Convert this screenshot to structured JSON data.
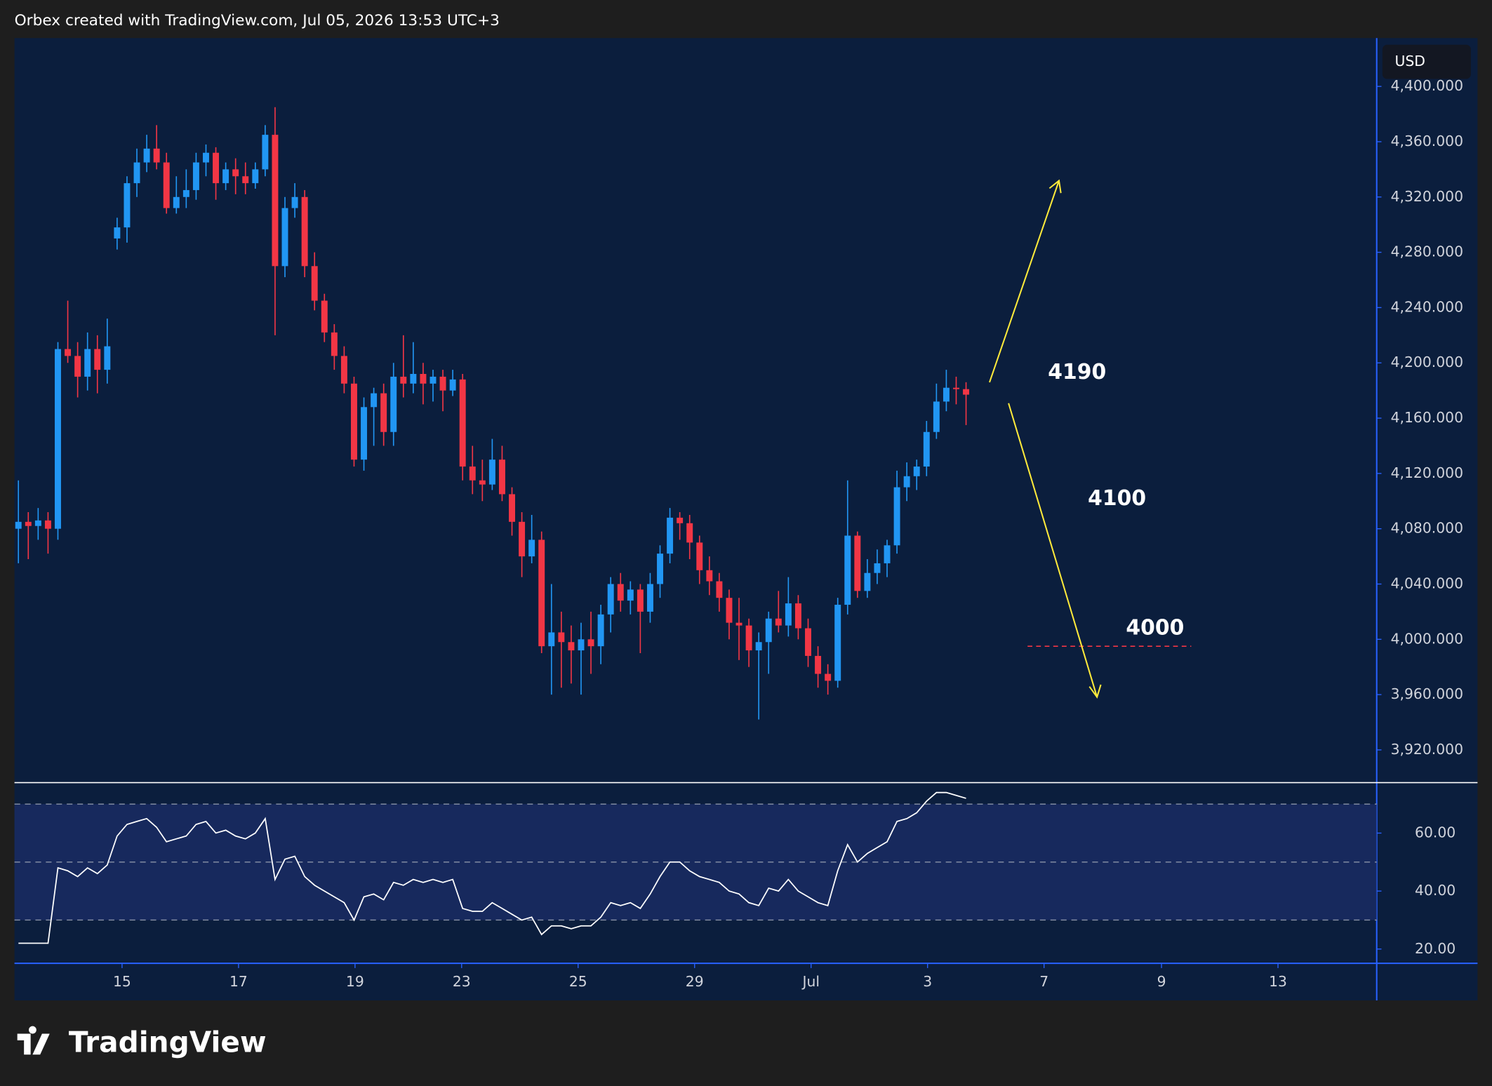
{
  "header": "Orbex created with TradingView.com, Jul 05, 2026 13:53 UTC+3",
  "logo": "TradingView",
  "chart_data": {
    "type": "candlestick",
    "currency": "USD",
    "up_color": "#2196f3",
    "down_color": "#f23645",
    "candles": [
      [
        4080,
        4115,
        4055,
        4085
      ],
      [
        4085,
        4092,
        4058,
        4082
      ],
      [
        4082,
        4095,
        4072,
        4086
      ],
      [
        4086,
        4092,
        4062,
        4080
      ],
      [
        4080,
        4215,
        4072,
        4210
      ],
      [
        4210,
        4245,
        4200,
        4205
      ],
      [
        4205,
        4215,
        4175,
        4190
      ],
      [
        4190,
        4222,
        4180,
        4210
      ],
      [
        4210,
        4220,
        4178,
        4195
      ],
      [
        4195,
        4232,
        4185,
        4212
      ],
      [
        4290,
        4305,
        4282,
        4298
      ],
      [
        4298,
        4335,
        4287,
        4330
      ],
      [
        4330,
        4355,
        4320,
        4345
      ],
      [
        4345,
        4365,
        4338,
        4355
      ],
      [
        4355,
        4372,
        4340,
        4345
      ],
      [
        4345,
        4352,
        4308,
        4312
      ],
      [
        4312,
        4335,
        4308,
        4320
      ],
      [
        4320,
        4340,
        4312,
        4325
      ],
      [
        4325,
        4352,
        4318,
        4345
      ],
      [
        4345,
        4358,
        4335,
        4352
      ],
      [
        4352,
        4356,
        4318,
        4330
      ],
      [
        4330,
        4345,
        4325,
        4340
      ],
      [
        4340,
        4348,
        4322,
        4335
      ],
      [
        4335,
        4345,
        4322,
        4330
      ],
      [
        4330,
        4345,
        4326,
        4340
      ],
      [
        4340,
        4372,
        4335,
        4365
      ],
      [
        4365,
        4385,
        4220,
        4270
      ],
      [
        4270,
        4320,
        4262,
        4312
      ],
      [
        4312,
        4330,
        4305,
        4320
      ],
      [
        4320,
        4325,
        4262,
        4270
      ],
      [
        4270,
        4280,
        4238,
        4245
      ],
      [
        4245,
        4250,
        4215,
        4222
      ],
      [
        4222,
        4228,
        4195,
        4205
      ],
      [
        4205,
        4212,
        4178,
        4185
      ],
      [
        4185,
        4190,
        4125,
        4130
      ],
      [
        4130,
        4175,
        4122,
        4168
      ],
      [
        4168,
        4182,
        4140,
        4178
      ],
      [
        4178,
        4185,
        4140,
        4150
      ],
      [
        4150,
        4200,
        4140,
        4190
      ],
      [
        4190,
        4220,
        4175,
        4185
      ],
      [
        4185,
        4215,
        4178,
        4192
      ],
      [
        4192,
        4200,
        4170,
        4185
      ],
      [
        4185,
        4195,
        4172,
        4190
      ],
      [
        4190,
        4195,
        4165,
        4180
      ],
      [
        4180,
        4195,
        4176,
        4188
      ],
      [
        4188,
        4192,
        4115,
        4125
      ],
      [
        4125,
        4140,
        4105,
        4115
      ],
      [
        4115,
        4130,
        4100,
        4112
      ],
      [
        4112,
        4145,
        4108,
        4130
      ],
      [
        4130,
        4140,
        4100,
        4105
      ],
      [
        4105,
        4110,
        4075,
        4085
      ],
      [
        4085,
        4092,
        4045,
        4060
      ],
      [
        4060,
        4090,
        4055,
        4072
      ],
      [
        4072,
        4078,
        3990,
        3995
      ],
      [
        3995,
        4040,
        3960,
        4005
      ],
      [
        4005,
        4020,
        3965,
        3998
      ],
      [
        3998,
        4010,
        3968,
        3992
      ],
      [
        3992,
        4012,
        3960,
        4000
      ],
      [
        4000,
        4020,
        3975,
        3995
      ],
      [
        3995,
        4025,
        3982,
        4018
      ],
      [
        4018,
        4045,
        4005,
        4040
      ],
      [
        4040,
        4048,
        4020,
        4028
      ],
      [
        4028,
        4042,
        4018,
        4036
      ],
      [
        4036,
        4040,
        3990,
        4020
      ],
      [
        4020,
        4048,
        4012,
        4040
      ],
      [
        4040,
        4068,
        4030,
        4062
      ],
      [
        4062,
        4095,
        4055,
        4088
      ],
      [
        4088,
        4092,
        4072,
        4084
      ],
      [
        4084,
        4090,
        4058,
        4070
      ],
      [
        4070,
        4075,
        4040,
        4050
      ],
      [
        4050,
        4060,
        4032,
        4042
      ],
      [
        4042,
        4048,
        4020,
        4030
      ],
      [
        4030,
        4036,
        4000,
        4012
      ],
      [
        4012,
        4030,
        3985,
        4010
      ],
      [
        4010,
        4015,
        3980,
        3992
      ],
      [
        3992,
        4005,
        3942,
        3998
      ],
      [
        3998,
        4020,
        3975,
        4015
      ],
      [
        4015,
        4035,
        4005,
        4010
      ],
      [
        4010,
        4045,
        4002,
        4026
      ],
      [
        4026,
        4032,
        4000,
        4008
      ],
      [
        4008,
        4015,
        3980,
        3988
      ],
      [
        3988,
        3995,
        3965,
        3975
      ],
      [
        3975,
        3982,
        3960,
        3970
      ],
      [
        3970,
        4030,
        3965,
        4025
      ],
      [
        4025,
        4115,
        4018,
        4075
      ],
      [
        4075,
        4078,
        4030,
        4035
      ],
      [
        4035,
        4058,
        4030,
        4048
      ],
      [
        4048,
        4065,
        4040,
        4055
      ],
      [
        4055,
        4072,
        4045,
        4068
      ],
      [
        4068,
        4122,
        4062,
        4110
      ],
      [
        4110,
        4128,
        4100,
        4118
      ],
      [
        4118,
        4130,
        4108,
        4125
      ],
      [
        4125,
        4158,
        4118,
        4150
      ],
      [
        4150,
        4185,
        4145,
        4172
      ],
      [
        4172,
        4195,
        4165,
        4182
      ],
      [
        4182,
        4190,
        4170,
        4181
      ],
      [
        4181,
        4186,
        4155,
        4177
      ]
    ],
    "ylim": [
      3897,
      4435
    ],
    "yticks": [
      {
        "value": 3920,
        "label": "3,920.000"
      },
      {
        "value": 3960,
        "label": "3,960.000"
      },
      {
        "value": 4000,
        "label": "4,000.000"
      },
      {
        "value": 4040,
        "label": "4,040.000"
      },
      {
        "value": 4080,
        "label": "4,080.000"
      },
      {
        "value": 4120,
        "label": "4,120.000"
      },
      {
        "value": 4160,
        "label": "4,160.000"
      },
      {
        "value": 4200,
        "label": "4,200.000"
      },
      {
        "value": 4240,
        "label": "4,240.000"
      },
      {
        "value": 4280,
        "label": "4,280.000"
      },
      {
        "value": 4320,
        "label": "4,320.000"
      },
      {
        "value": 4360,
        "label": "4,360.000"
      },
      {
        "value": 4400,
        "label": "4,400.000"
      }
    ],
    "xlim": [
      -0.4,
      137.6
    ],
    "xticks": [
      {
        "value": 10.5,
        "label": "15"
      },
      {
        "value": 22.3,
        "label": "17"
      },
      {
        "value": 34.1,
        "label": "19"
      },
      {
        "value": 44.9,
        "label": "23"
      },
      {
        "value": 56.7,
        "label": "25"
      },
      {
        "value": 68.5,
        "label": "29"
      },
      {
        "value": 80.3,
        "label": "Jul"
      },
      {
        "value": 92.1,
        "label": "3"
      },
      {
        "value": 103.9,
        "label": "7"
      },
      {
        "value": 115.8,
        "label": "9"
      },
      {
        "value": 127.6,
        "label": "13"
      }
    ],
    "annotations": [
      "4190",
      "4100",
      "4000"
    ],
    "level_line": 3995,
    "level_color": "#f23645",
    "rsi": {
      "color": "#ffffff",
      "ylim": [
        15.4,
        77.4
      ],
      "bands": [
        30,
        50,
        70
      ],
      "yticks": [
        {
          "value": 20,
          "label": "20.00"
        },
        {
          "value": 40,
          "label": "40.00"
        },
        {
          "value": 60,
          "label": "60.00"
        }
      ],
      "values": [
        22,
        22,
        22,
        22,
        48,
        47,
        45,
        48,
        46,
        49,
        59,
        63,
        64,
        65,
        62,
        57,
        58,
        59,
        63,
        64,
        60,
        61,
        59,
        58,
        60,
        65,
        44,
        51,
        52,
        45,
        42,
        40,
        38,
        36,
        30,
        38,
        39,
        37,
        43,
        42,
        44,
        43,
        44,
        43,
        44,
        34,
        33,
        33,
        36,
        34,
        32,
        30,
        31,
        25,
        28,
        28,
        27,
        28,
        28,
        31,
        36,
        35,
        36,
        34,
        39,
        45,
        50,
        50,
        47,
        45,
        44,
        43,
        40,
        39,
        36,
        35,
        41,
        40,
        44,
        40,
        38,
        36,
        35,
        47,
        56,
        50,
        53,
        55,
        57,
        64,
        65,
        67,
        71,
        74,
        74,
        73,
        72
      ]
    }
  }
}
